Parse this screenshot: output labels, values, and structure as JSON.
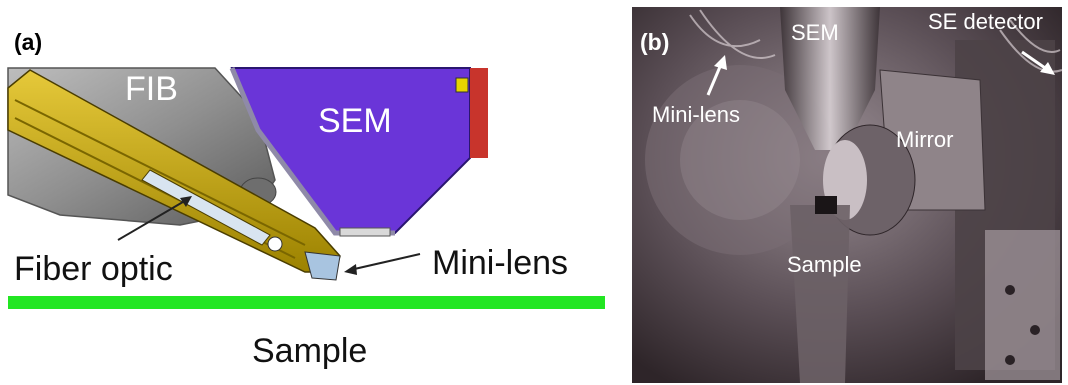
{
  "panel_a": {
    "tag": "(a)",
    "labels": {
      "fib": "FIB",
      "sem": "SEM",
      "fiber_optic": "Fiber optic",
      "mini_lens": "Mini-lens",
      "sample": "Sample"
    }
  },
  "panel_b": {
    "tag": "(b)",
    "labels": {
      "sem": "SEM",
      "se_detector": "SE detector",
      "mini_lens": "Mini-lens",
      "mirror": "Mirror",
      "sample": "Sample"
    }
  },
  "colors": {
    "fib_body": "#8c8c8c",
    "sem_column": "#6a35d8",
    "probe_arm": "#c9a800",
    "sample_bar": "#22e622",
    "photo_tone": "#4a3f45"
  }
}
